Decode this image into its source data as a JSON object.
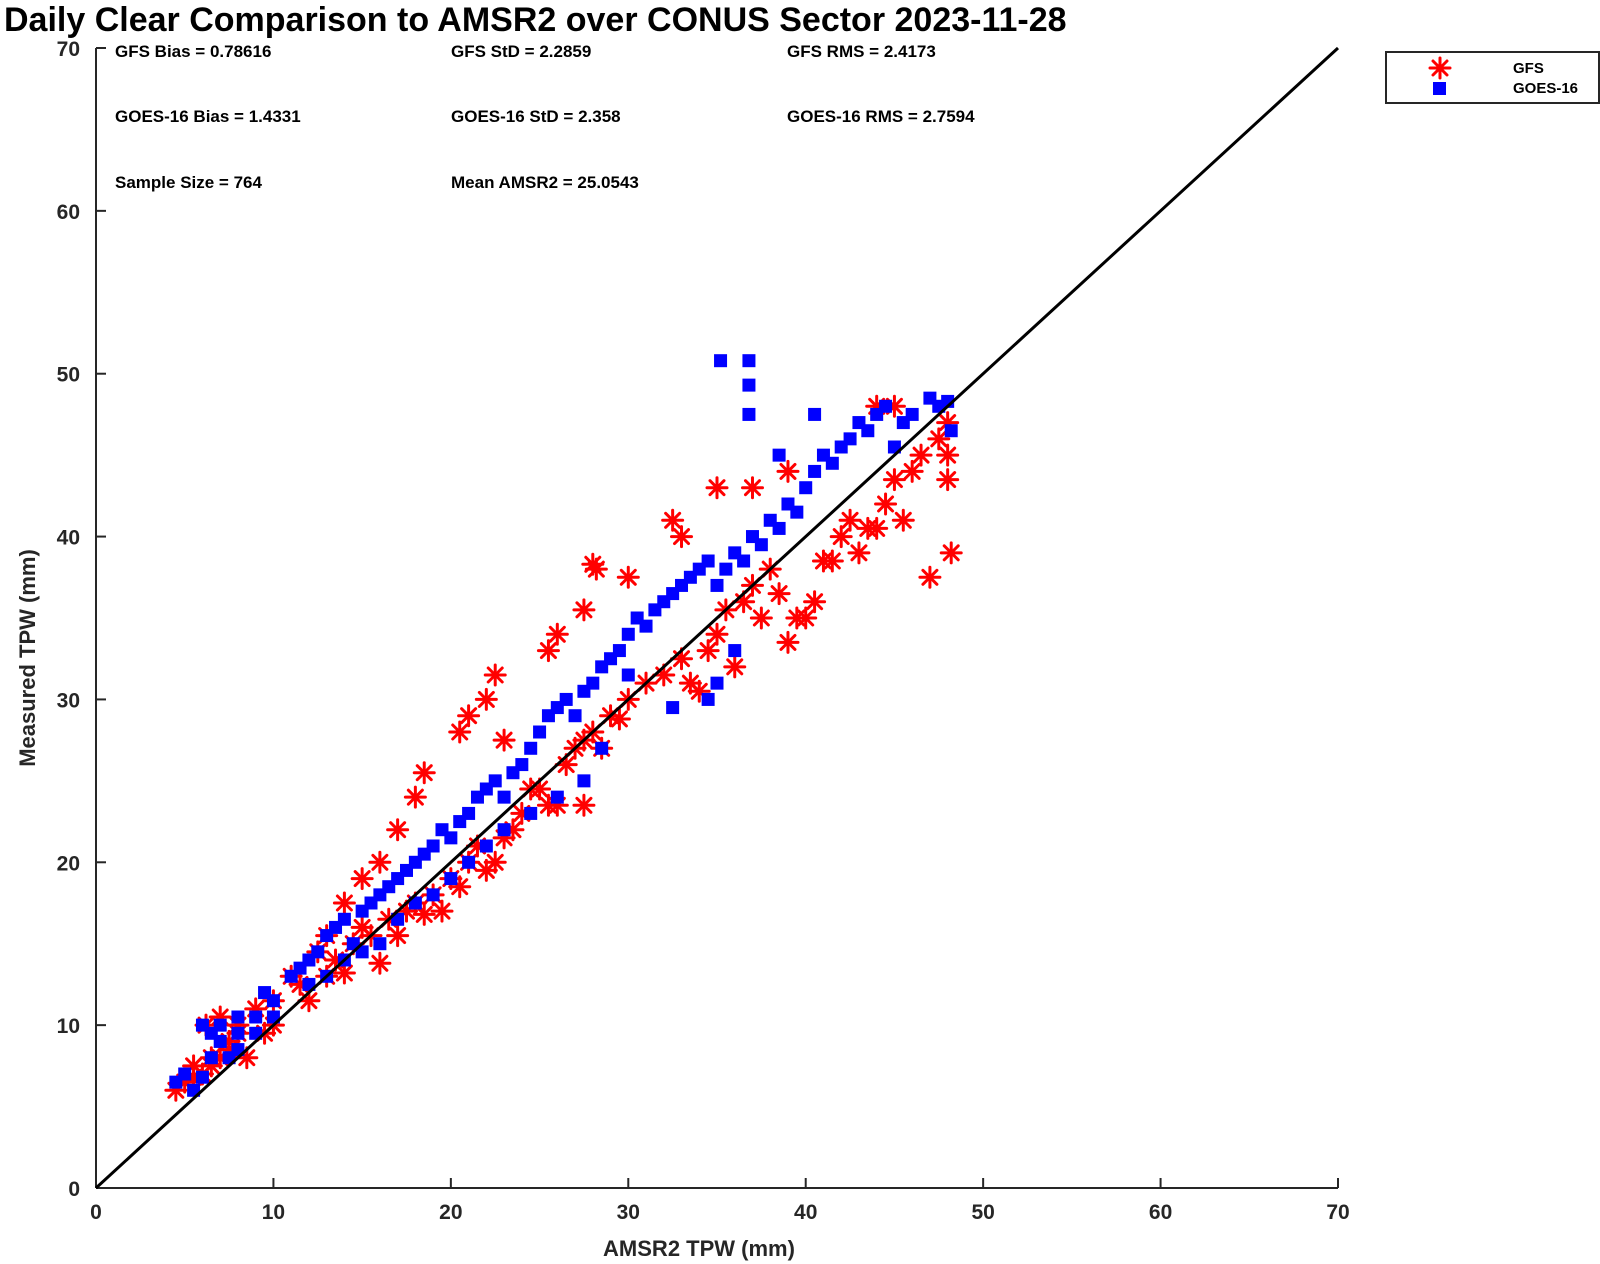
{
  "chart_data": {
    "type": "scatter",
    "title": "Daily Clear Comparison to AMSR2 over CONUS Sector 2023-11-28",
    "xlabel": "AMSR2 TPW (mm)",
    "ylabel": "Measured TPW (mm)",
    "xlim": [
      0,
      70
    ],
    "ylim": [
      0,
      70
    ],
    "xticks": [
      0,
      10,
      20,
      30,
      40,
      50,
      60,
      70
    ],
    "yticks": [
      0,
      10,
      20,
      30,
      40,
      50,
      60,
      70
    ],
    "grid": false,
    "legend_position": "top-right, outside plot",
    "reference_line": {
      "x": [
        0,
        70
      ],
      "y": [
        0,
        70
      ],
      "color": "#000000"
    },
    "stats": {
      "gfs_bias": "GFS Bias = 0.78616",
      "gfs_std": "GFS StD = 2.2859",
      "gfs_rms": "GFS RMS = 2.4173",
      "goes_bias": "GOES-16 Bias = 1.4331",
      "goes_std": "GOES-16 StD = 2.358",
      "goes_rms": "GOES-16 RMS = 2.7594",
      "sample_size": "Sample Size = 764",
      "mean_amsr2": "Mean AMSR2 = 25.0543"
    },
    "series": [
      {
        "name": "GFS",
        "marker": "asterisk",
        "color": "#ff0000",
        "points": [
          [
            4.5,
            6.0
          ],
          [
            5.0,
            6.5
          ],
          [
            5.5,
            6.8
          ],
          [
            6.0,
            7.0
          ],
          [
            6.5,
            7.5
          ],
          [
            7.0,
            8.0
          ],
          [
            7.5,
            8.5
          ],
          [
            8.5,
            8.0
          ],
          [
            9.5,
            9.5
          ],
          [
            10.0,
            10.0
          ],
          [
            6.2,
            10.0
          ],
          [
            7.0,
            10.5
          ],
          [
            8.0,
            10.0
          ],
          [
            11.5,
            12.5
          ],
          [
            12.0,
            11.5
          ],
          [
            13.0,
            13.0
          ],
          [
            13.5,
            14.0
          ],
          [
            14.0,
            13.2
          ],
          [
            14.5,
            15.0
          ],
          [
            15.5,
            15.5
          ],
          [
            16.0,
            13.8
          ],
          [
            15.0,
            16.0
          ],
          [
            16.5,
            16.5
          ],
          [
            17.0,
            15.5
          ],
          [
            17.5,
            17.0
          ],
          [
            18.0,
            17.5
          ],
          [
            18.5,
            16.8
          ],
          [
            19.0,
            18.0
          ],
          [
            19.5,
            17.0
          ],
          [
            20.0,
            19.0
          ],
          [
            20.5,
            18.5
          ],
          [
            21.0,
            20.0
          ],
          [
            21.5,
            21.0
          ],
          [
            22.0,
            19.5
          ],
          [
            22.5,
            20.0
          ],
          [
            23.0,
            21.5
          ],
          [
            23.5,
            22.0
          ],
          [
            24.0,
            23.0
          ],
          [
            24.5,
            24.5
          ],
          [
            25.0,
            24.5
          ],
          [
            25.5,
            23.5
          ],
          [
            26.0,
            23.5
          ],
          [
            27.5,
            23.5
          ],
          [
            26.5,
            26.0
          ],
          [
            27.0,
            27.0
          ],
          [
            27.5,
            27.5
          ],
          [
            28.0,
            28.0
          ],
          [
            28.5,
            27.0
          ],
          [
            29.0,
            29.0
          ],
          [
            29.5,
            28.8
          ],
          [
            30.0,
            30.0
          ],
          [
            31.0,
            31.0
          ],
          [
            32.0,
            31.5
          ],
          [
            33.0,
            32.5
          ],
          [
            33.5,
            31.0
          ],
          [
            34.0,
            30.5
          ],
          [
            34.5,
            33.0
          ],
          [
            35.0,
            34.0
          ],
          [
            35.5,
            35.5
          ],
          [
            36.0,
            32.0
          ],
          [
            36.5,
            36.0
          ],
          [
            37.0,
            37.0
          ],
          [
            37.5,
            35.0
          ],
          [
            38.0,
            38.0
          ],
          [
            38.5,
            36.5
          ],
          [
            39.0,
            33.5
          ],
          [
            39.5,
            35.0
          ],
          [
            40.0,
            35.0
          ],
          [
            40.5,
            36.0
          ],
          [
            41.0,
            38.5
          ],
          [
            41.5,
            38.5
          ],
          [
            42.0,
            40.0
          ],
          [
            42.5,
            41.0
          ],
          [
            43.0,
            39.0
          ],
          [
            43.5,
            40.5
          ],
          [
            44.0,
            40.5
          ],
          [
            44.5,
            42.0
          ],
          [
            45.0,
            43.5
          ],
          [
            45.5,
            41.0
          ],
          [
            46.0,
            44.0
          ],
          [
            46.5,
            45.0
          ],
          [
            47.0,
            37.5
          ],
          [
            47.5,
            46.0
          ],
          [
            48.0,
            45.0
          ],
          [
            48.0,
            43.5
          ],
          [
            48.2,
            39.0
          ],
          [
            48.0,
            47.0
          ],
          [
            44.0,
            48.0
          ],
          [
            45.0,
            48.0
          ],
          [
            39.0,
            44.0
          ],
          [
            37.0,
            43.0
          ],
          [
            35.0,
            43.0
          ],
          [
            33.0,
            40.0
          ],
          [
            32.5,
            41.0
          ],
          [
            30.0,
            37.5
          ],
          [
            28.0,
            38.3
          ],
          [
            28.2,
            38.0
          ],
          [
            27.5,
            35.5
          ],
          [
            26.0,
            34.0
          ],
          [
            25.5,
            33.0
          ],
          [
            23.0,
            27.5
          ],
          [
            22.5,
            31.5
          ],
          [
            22.0,
            30.0
          ],
          [
            20.5,
            28.0
          ],
          [
            21.0,
            29.0
          ],
          [
            18.0,
            24.0
          ],
          [
            18.5,
            25.5
          ],
          [
            17.0,
            22.0
          ],
          [
            16.0,
            20.0
          ],
          [
            15.0,
            19.0
          ],
          [
            14.0,
            17.5
          ],
          [
            13.0,
            15.5
          ],
          [
            12.5,
            14.5
          ],
          [
            11.0,
            13.0
          ],
          [
            10.0,
            11.5
          ],
          [
            9.0,
            11.0
          ],
          [
            8.0,
            9.5
          ],
          [
            7.5,
            9.0
          ],
          [
            6.5,
            8.0
          ],
          [
            5.5,
            7.5
          ]
        ]
      },
      {
        "name": "GOES-16",
        "marker": "square",
        "color": "#0000ff",
        "points": [
          [
            4.5,
            6.5
          ],
          [
            5.0,
            7.0
          ],
          [
            5.5,
            6.0
          ],
          [
            6.0,
            6.8
          ],
          [
            6.5,
            8.0
          ],
          [
            7.0,
            9.0
          ],
          [
            7.5,
            8.0
          ],
          [
            8.0,
            9.5
          ],
          [
            9.0,
            10.5
          ],
          [
            9.5,
            12.0
          ],
          [
            6.0,
            10.0
          ],
          [
            6.5,
            9.5
          ],
          [
            7.0,
            10.0
          ],
          [
            8.0,
            10.5
          ],
          [
            10.0,
            11.5
          ],
          [
            11.0,
            13.0
          ],
          [
            11.5,
            13.5
          ],
          [
            12.0,
            14.0
          ],
          [
            12.5,
            14.5
          ],
          [
            13.0,
            15.5
          ],
          [
            13.5,
            16.0
          ],
          [
            14.0,
            16.5
          ],
          [
            14.5,
            15.0
          ],
          [
            15.0,
            17.0
          ],
          [
            15.5,
            17.5
          ],
          [
            16.0,
            18.0
          ],
          [
            16.5,
            18.5
          ],
          [
            17.0,
            19.0
          ],
          [
            17.5,
            19.5
          ],
          [
            18.0,
            20.0
          ],
          [
            18.5,
            20.5
          ],
          [
            19.0,
            21.0
          ],
          [
            19.5,
            22.0
          ],
          [
            20.0,
            21.5
          ],
          [
            20.5,
            22.5
          ],
          [
            21.0,
            23.0
          ],
          [
            21.5,
            24.0
          ],
          [
            22.0,
            24.5
          ],
          [
            22.5,
            25.0
          ],
          [
            23.0,
            24.0
          ],
          [
            23.5,
            25.5
          ],
          [
            24.0,
            26.0
          ],
          [
            24.5,
            27.0
          ],
          [
            25.0,
            28.0
          ],
          [
            25.5,
            29.0
          ],
          [
            26.0,
            29.5
          ],
          [
            26.5,
            30.0
          ],
          [
            27.0,
            29.0
          ],
          [
            27.5,
            30.5
          ],
          [
            28.0,
            31.0
          ],
          [
            28.5,
            32.0
          ],
          [
            29.0,
            32.5
          ],
          [
            29.5,
            33.0
          ],
          [
            30.0,
            34.0
          ],
          [
            30.5,
            35.0
          ],
          [
            31.0,
            34.5
          ],
          [
            31.5,
            35.5
          ],
          [
            32.0,
            36.0
          ],
          [
            32.5,
            36.5
          ],
          [
            33.0,
            37.0
          ],
          [
            33.5,
            37.5
          ],
          [
            34.0,
            38.0
          ],
          [
            34.5,
            38.5
          ],
          [
            35.0,
            37.0
          ],
          [
            35.5,
            38.0
          ],
          [
            36.0,
            39.0
          ],
          [
            36.5,
            38.5
          ],
          [
            37.0,
            40.0
          ],
          [
            37.5,
            39.5
          ],
          [
            38.0,
            41.0
          ],
          [
            38.5,
            40.5
          ],
          [
            39.0,
            42.0
          ],
          [
            39.5,
            41.5
          ],
          [
            40.0,
            43.0
          ],
          [
            40.5,
            44.0
          ],
          [
            41.0,
            45.0
          ],
          [
            41.5,
            44.5
          ],
          [
            42.0,
            45.5
          ],
          [
            42.5,
            46.0
          ],
          [
            43.0,
            47.0
          ],
          [
            43.5,
            46.5
          ],
          [
            44.0,
            47.5
          ],
          [
            44.5,
            48.0
          ],
          [
            45.0,
            45.5
          ],
          [
            45.5,
            47.0
          ],
          [
            46.0,
            47.5
          ],
          [
            47.0,
            48.5
          ],
          [
            47.5,
            48.0
          ],
          [
            48.0,
            48.3
          ],
          [
            48.2,
            46.5
          ],
          [
            35.2,
            50.8
          ],
          [
            36.8,
            50.8
          ],
          [
            36.8,
            49.3
          ],
          [
            36.8,
            47.5
          ],
          [
            40.5,
            47.5
          ],
          [
            38.5,
            45.0
          ],
          [
            36.0,
            33.0
          ],
          [
            35.0,
            31.0
          ],
          [
            34.5,
            30.0
          ],
          [
            32.5,
            29.5
          ],
          [
            30.0,
            31.5
          ],
          [
            28.5,
            27.0
          ],
          [
            27.5,
            25.0
          ],
          [
            26.0,
            24.0
          ],
          [
            24.5,
            23.0
          ],
          [
            23.0,
            22.0
          ],
          [
            22.0,
            21.0
          ],
          [
            21.0,
            20.0
          ],
          [
            20.0,
            19.0
          ],
          [
            19.0,
            18.0
          ],
          [
            18.0,
            17.5
          ],
          [
            17.0,
            16.5
          ],
          [
            16.0,
            15.0
          ],
          [
            15.0,
            14.5
          ],
          [
            14.0,
            14.0
          ],
          [
            13.0,
            13.0
          ],
          [
            12.0,
            12.5
          ],
          [
            10.0,
            10.5
          ],
          [
            9.0,
            9.5
          ],
          [
            8.0,
            8.5
          ]
        ]
      }
    ]
  },
  "legend": {
    "items": [
      {
        "label": "GFS",
        "color": "#ff0000",
        "marker": "asterisk"
      },
      {
        "label": "GOES-16",
        "color": "#0000ff",
        "marker": "square"
      }
    ]
  }
}
